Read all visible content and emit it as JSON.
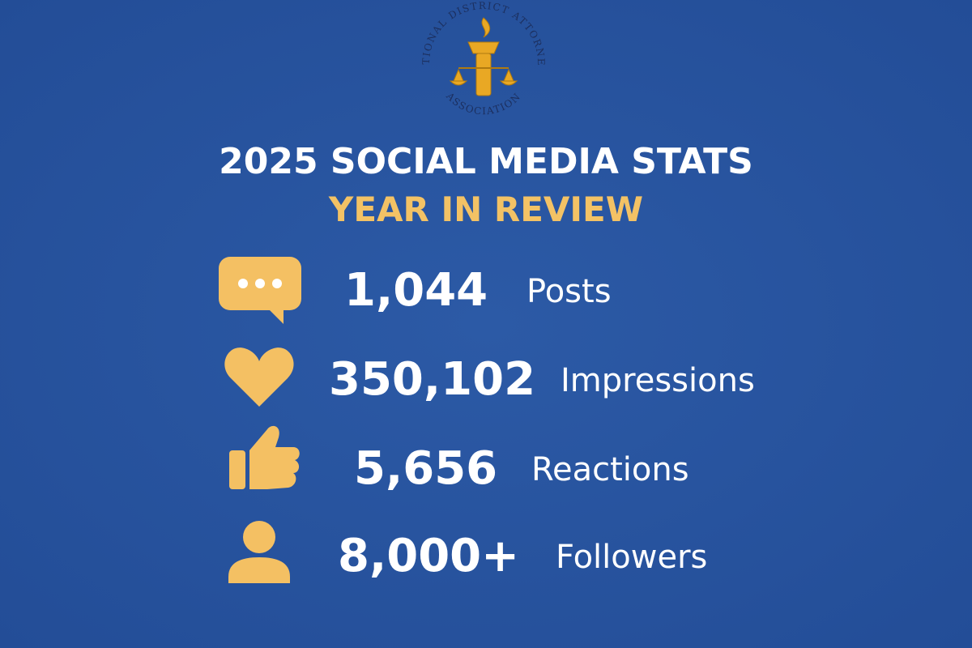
{
  "logo": {
    "top_text": "NATIONAL DISTRICT ATTORNEYS",
    "bottom_text": "ASSOCIATION"
  },
  "header": {
    "title": "2025 SOCIAL MEDIA STATS",
    "subtitle": "YEAR IN REVIEW"
  },
  "stats": [
    {
      "value": "1,044",
      "label": "Posts"
    },
    {
      "value": "350,102",
      "label": "Impressions"
    },
    {
      "value": "5,656",
      "label": "Reactions"
    },
    {
      "value": "8,000+",
      "label": "Followers"
    }
  ]
}
